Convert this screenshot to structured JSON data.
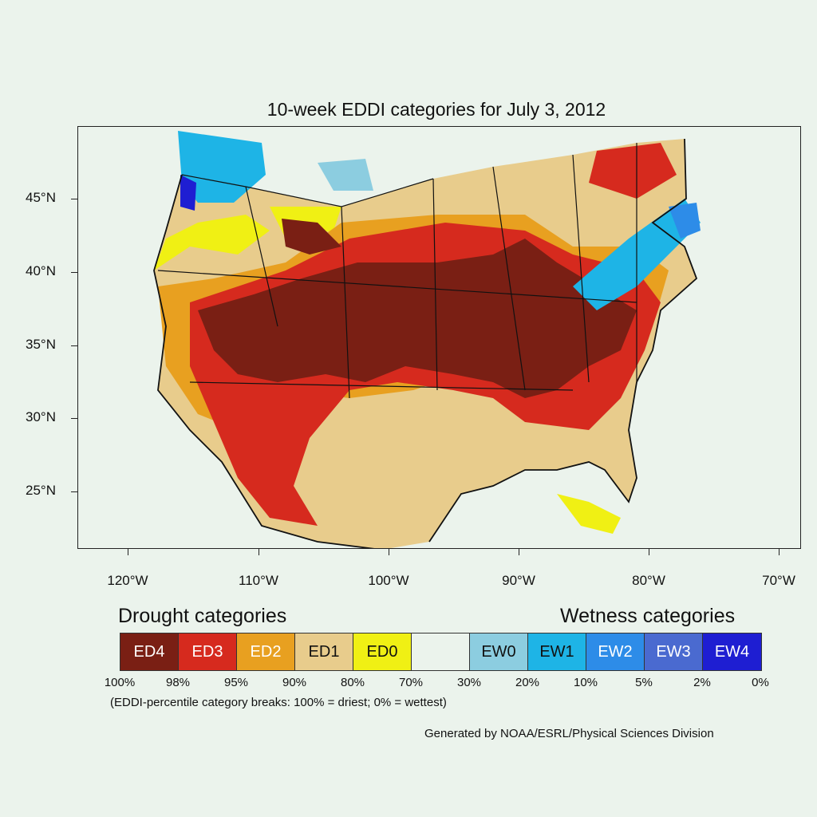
{
  "title": "10-week EDDI categories for July 3, 2012",
  "y_axis_labels": [
    "45°N",
    "40°N",
    "35°N",
    "30°N",
    "25°N"
  ],
  "x_axis_labels": [
    "120°W",
    "110°W",
    "100°W",
    "90°W",
    "80°W",
    "70°W"
  ],
  "legend": {
    "drought_heading": "Drought categories",
    "wetness_heading": "Wetness categories",
    "categories": [
      {
        "label": "ED4",
        "color": "#7a1f14",
        "text_color": "#ffffff"
      },
      {
        "label": "ED3",
        "color": "#d62a1e",
        "text_color": "#ffffff"
      },
      {
        "label": "ED2",
        "color": "#e8a020",
        "text_color": "#ffffff"
      },
      {
        "label": "ED1",
        "color": "#e8cc8c",
        "text_color": "#111111"
      },
      {
        "label": "ED0",
        "color": "#f0f014",
        "text_color": "#111111"
      },
      {
        "label": "",
        "color": "#ebf3ec",
        "text_color": "#111111"
      },
      {
        "label": "EW0",
        "color": "#8ccde0",
        "text_color": "#111111"
      },
      {
        "label": "EW1",
        "color": "#1eb4e6",
        "text_color": "#111111"
      },
      {
        "label": "EW2",
        "color": "#2d8ce8",
        "text_color": "#ffffff"
      },
      {
        "label": "EW3",
        "color": "#4a6ad0",
        "text_color": "#ffffff"
      },
      {
        "label": "EW4",
        "color": "#1e1ed2",
        "text_color": "#ffffff"
      }
    ],
    "percent_breaks": [
      "100%",
      "98%",
      "95%",
      "90%",
      "80%",
      "70%",
      "30%",
      "20%",
      "10%",
      "5%",
      "2%",
      "0%"
    ],
    "note": "(EDDI-percentile category breaks: 100% = driest; 0% = wettest)"
  },
  "credit": "Generated by NOAA/ESRL/Physical Sciences Division"
}
